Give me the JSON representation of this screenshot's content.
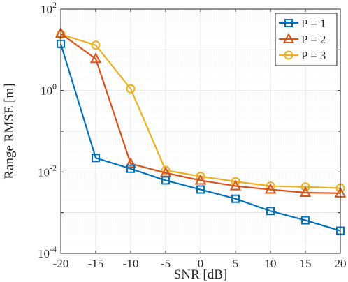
{
  "chart_data": {
    "type": "line",
    "title": "",
    "xlabel": "SNR [dB]",
    "ylabel": "Range RMSE [m]",
    "x": [
      -20,
      -15,
      -10,
      -5,
      0,
      5,
      10,
      15,
      20
    ],
    "xlim": [
      -20,
      20
    ],
    "xticks": [
      "-20",
      "-15",
      "-10",
      "-5",
      "0",
      "5",
      "10",
      "15",
      "20"
    ],
    "yscale": "log",
    "ylim": [
      0.0001,
      100
    ],
    "yticks": [
      {
        "value": 100,
        "base": "10",
        "exp": "2"
      },
      {
        "value": 1,
        "base": "10",
        "exp": "0"
      },
      {
        "value": 0.01,
        "base": "10",
        "exp": "-2"
      },
      {
        "value": 0.0001,
        "base": "10",
        "exp": "-4"
      }
    ],
    "grid": true,
    "legend_position": "top-right",
    "series": [
      {
        "name": "P = 1",
        "color": "#0072BD",
        "marker": "square",
        "values": [
          14,
          0.022,
          0.012,
          0.0062,
          0.0037,
          0.0022,
          0.0011,
          0.00065,
          0.00036
        ]
      },
      {
        "name": "P = 2",
        "color": "#D95319",
        "marker": "triangle",
        "values": [
          25,
          6,
          0.016,
          0.0095,
          0.0062,
          0.0045,
          0.0037,
          0.0031,
          0.003
        ]
      },
      {
        "name": "P = 3",
        "color": "#EDB120",
        "marker": "circle",
        "values": [
          24,
          13,
          1.1,
          0.011,
          0.0078,
          0.0058,
          0.0045,
          0.0043,
          0.004
        ]
      }
    ]
  }
}
